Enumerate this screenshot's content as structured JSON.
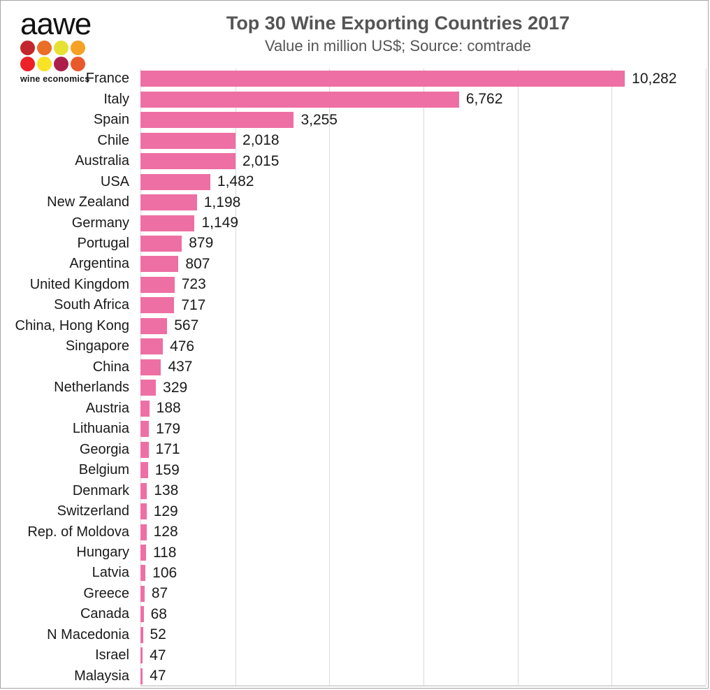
{
  "logo": {
    "text": "aawe",
    "subtext": "wine economics",
    "dot_colors": [
      "#c1272d",
      "#ea6d28",
      "#e6e032",
      "#f4a124",
      "#ec2027",
      "#f8e325",
      "#ad1f4a",
      "#e85a2b"
    ]
  },
  "header": {
    "title": "Top 30 Wine Exporting Countries 2017",
    "subtitle": "Value in million US$; Source: comtrade"
  },
  "chart_data": {
    "type": "bar",
    "orientation": "horizontal",
    "title": "Top 30 Wine Exporting Countries 2017",
    "subtitle": "Value in million US$; Source: comtrade",
    "categories": [
      "France",
      "Italy",
      "Spain",
      "Chile",
      "Australia",
      "USA",
      "New Zealand",
      "Germany",
      "Portugal",
      "Argentina",
      "United Kingdom",
      "South Africa",
      "China, Hong Kong",
      "Singapore",
      "China",
      "Netherlands",
      "Austria",
      "Lithuania",
      "Georgia",
      "Belgium",
      "Denmark",
      "Switzerland",
      "Rep. of Moldova",
      "Hungary",
      "Latvia",
      "Greece",
      "Canada",
      "N Macedonia",
      "Israel",
      "Malaysia"
    ],
    "values": [
      10282,
      6762,
      3255,
      2018,
      2015,
      1482,
      1198,
      1149,
      879,
      807,
      723,
      717,
      567,
      476,
      437,
      329,
      188,
      179,
      171,
      159,
      138,
      129,
      128,
      118,
      106,
      87,
      68,
      52,
      47,
      47
    ],
    "value_labels": [
      "10,282",
      "6,762",
      "3,255",
      "2,018",
      "2,015",
      "1,482",
      "1,198",
      "1,149",
      "879",
      "807",
      "723",
      "717",
      "567",
      "476",
      "437",
      "329",
      "188",
      "179",
      "171",
      "159",
      "138",
      "129",
      "128",
      "118",
      "106",
      "87",
      "68",
      "52",
      "47",
      "47"
    ],
    "xlim": [
      0,
      12000
    ],
    "gridline_interval": 2000,
    "grid": true,
    "legend": false,
    "bar_color": "#ee6fa3",
    "gridline_color": "#d9d9d9",
    "label_color": "#1a1a1a",
    "title_color": "#555555"
  }
}
